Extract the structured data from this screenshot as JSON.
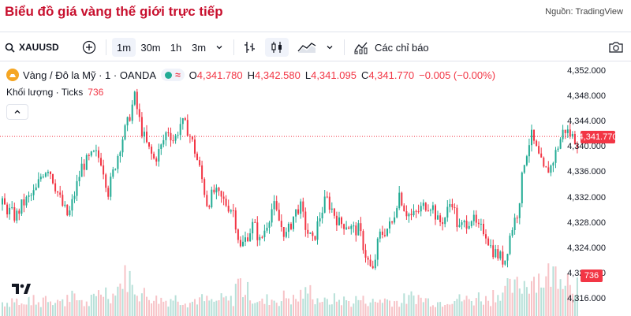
{
  "page": {
    "title": "Biểu đồ giá vàng thế giới trực tiếp",
    "source": "Nguồn: TradingView"
  },
  "toolbar": {
    "symbol": "XAUUSD",
    "intervals": [
      "1m",
      "30m",
      "1h",
      "3m"
    ],
    "active_interval": "1m",
    "indicators_label": "Các chỉ báo"
  },
  "legend": {
    "name": "Vàng / Đô la Mỹ · 1 · OANDA",
    "o_label": "O",
    "o_value": "4,341.780",
    "h_label": "H",
    "h_value": "4,342.580",
    "l_label": "L",
    "l_value": "4,341.095",
    "c_label": "C",
    "c_value": "4,341.770",
    "change": "−0.005 (−0.00%)",
    "volume_label": "Khối lượng · Ticks",
    "volume_value": "736"
  },
  "colors": {
    "up": "#22ab94",
    "down": "#f23645",
    "vol_up": "#b7e0d8",
    "vol_down": "#f7c3c7"
  },
  "chart_data": {
    "type": "candlestick",
    "symbol": "XAUUSD",
    "y_axis_ticks": [
      "4,352.000",
      "4,348.000",
      "4,344.000",
      "4,340.000",
      "4,336.000",
      "4,332.000",
      "4,328.000",
      "4,324.000",
      "4,320.000",
      "4,316.000"
    ],
    "ylim": [
      4315,
      4353
    ],
    "last_price": "4,341.770",
    "last_volume": "736",
    "price_path": [
      4331,
      4330,
      4329,
      4331,
      4332,
      4333,
      4336,
      4337,
      4334,
      4331,
      4329,
      4333,
      4337,
      4338,
      4339,
      4338,
      4333,
      4337,
      4341,
      4344,
      4348,
      4343,
      4340,
      4338,
      4340,
      4343,
      4341,
      4344,
      4343,
      4340,
      4336,
      4331,
      4333,
      4332,
      4331,
      4330,
      4324,
      4326,
      4328,
      4325,
      4328,
      4331,
      4328,
      4326,
      4329,
      4331,
      4327,
      4325,
      4329,
      4332,
      4330,
      4328,
      4328,
      4327,
      4327,
      4323,
      4320,
      4326,
      4327,
      4328,
      4333,
      4330,
      4329,
      4330,
      4331,
      4331,
      4328,
      4329,
      4332,
      4327,
      4328,
      4329,
      4327,
      4327,
      4324,
      4323,
      4322,
      4327,
      4330,
      4338,
      4342,
      4339,
      4336,
      4337,
      4340,
      4343,
      4342,
      4341
    ],
    "volume_profile": [
      0.25,
      0.3,
      0.2,
      0.28,
      0.22,
      0.35,
      0.3,
      0.25,
      0.4,
      0.3,
      0.22,
      0.3,
      0.45,
      0.38,
      0.55,
      0.7,
      0.5,
      0.4,
      0.35,
      0.3,
      0.28,
      0.32,
      0.3,
      0.25,
      0.3,
      0.28,
      0.25,
      0.3,
      0.28,
      0.6,
      0.45,
      0.3,
      0.25,
      0.3,
      0.28,
      0.35,
      0.3,
      0.4,
      0.45,
      0.3,
      0.25,
      0.3,
      0.28,
      0.25,
      0.3,
      0.28,
      0.25,
      0.3,
      0.28,
      0.25,
      0.3,
      0.35,
      0.3,
      0.28,
      0.25,
      0.3,
      0.32,
      0.3,
      0.28,
      0.35,
      0.3,
      0.4,
      0.45,
      0.5,
      0.55,
      0.6,
      0.7,
      0.65,
      0.75,
      0.8,
      0.7,
      0.6
    ]
  }
}
